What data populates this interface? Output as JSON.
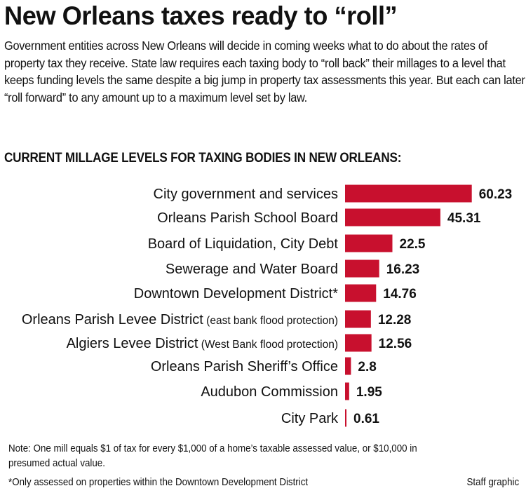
{
  "title": "New Orleans taxes ready to “roll”",
  "intro": "Government entities across New Orleans will decide in coming weeks what to do about the rates of property tax they receive. State law requires each taxing body to “roll back” their millages to a level that keeps funding levels the same despite a big jump in property tax assessments this year. But each can later “roll forward” to any amount up to a maximum level set by law.",
  "chart_data": {
    "type": "bar",
    "orientation": "horizontal",
    "title": "CURRENT MILLAGE LEVELS FOR TAXING BODIES IN NEW ORLEANS:",
    "bar_color": "#c8102e",
    "grid": false,
    "categories": [
      {
        "name": "City government and services",
        "note": ""
      },
      {
        "name": "Orleans Parish School Board",
        "note": ""
      },
      {
        "name": "Board of Liquidation, City Debt",
        "note": ""
      },
      {
        "name": "Sewerage and Water Board",
        "note": ""
      },
      {
        "name": "Downtown Development District*",
        "note": ""
      },
      {
        "name": "Orleans Parish Levee District",
        "note": "(east bank flood protection)"
      },
      {
        "name": "Algiers Levee District",
        "note": "(West Bank flood protection)"
      },
      {
        "name": "Orleans Parish Sheriff’s Office",
        "note": ""
      },
      {
        "name": "Audubon Commission",
        "note": ""
      },
      {
        "name": "City Park",
        "note": ""
      }
    ],
    "values": [
      60.23,
      45.31,
      22.5,
      16.23,
      14.76,
      12.28,
      12.56,
      2.8,
      1.95,
      0.61
    ],
    "value_labels": [
      "60.23",
      "45.31",
      "22.5",
      "16.23",
      "14.76",
      "12.28",
      "12.56",
      "2.8",
      "1.95",
      "0.61"
    ]
  },
  "note": "Note: One mill equals $1 of tax for every $1,000 of a home’s taxable assessed value, or $10,000 in presumed actual value.",
  "footnote": "*Only assessed on properties within the Downtown Development District",
  "credit": "Staff graphic"
}
